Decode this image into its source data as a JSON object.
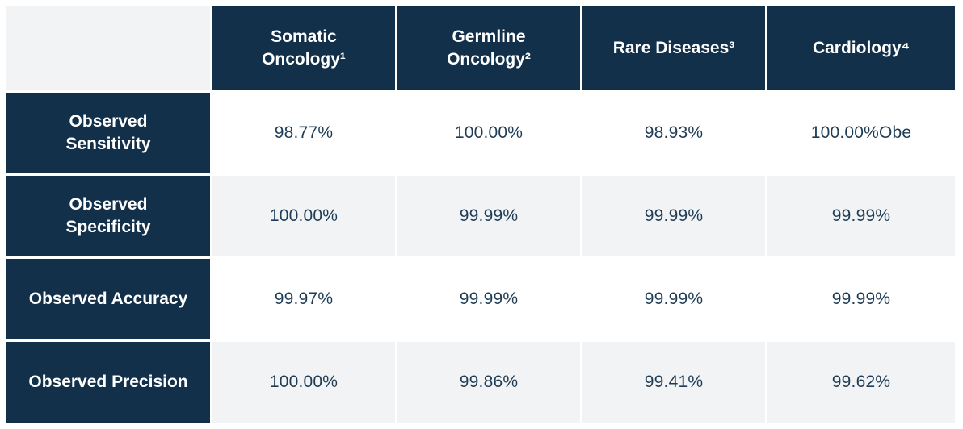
{
  "colors": {
    "navy": "#12304a",
    "row_alt": "#f1f3f4",
    "value_text": "#1e3c55",
    "page_bg": "#ffffff"
  },
  "table": {
    "corner_label": "",
    "columns": [
      "Somatic\nOncology¹",
      "Germline\nOncology²",
      "Rare Diseases³",
      "Cardiology⁴"
    ],
    "rows": [
      {
        "label": "Observed\nSensitivity",
        "values": [
          "98.77%",
          "100.00%",
          "98.93%",
          "100.00%Obe"
        ]
      },
      {
        "label": "Observed\nSpecificity",
        "values": [
          "100.00%",
          "99.99%",
          "99.99%",
          "99.99%"
        ]
      },
      {
        "label": "Observed Accuracy",
        "values": [
          "99.97%",
          "99.99%",
          "99.99%",
          "99.99%"
        ]
      },
      {
        "label": "Observed Precision",
        "values": [
          "100.00%",
          "99.86%",
          "99.41%",
          "99.62%"
        ]
      }
    ]
  },
  "chart_data": {
    "type": "table",
    "title": "",
    "categories": [
      "Somatic Oncology¹",
      "Germline Oncology²",
      "Rare Diseases³",
      "Cardiology⁴"
    ],
    "series": [
      {
        "name": "Observed Sensitivity",
        "values": [
          98.77,
          100.0,
          98.93,
          100.0
        ]
      },
      {
        "name": "Observed Specificity",
        "values": [
          100.0,
          99.99,
          99.99,
          99.99
        ]
      },
      {
        "name": "Observed Accuracy",
        "values": [
          99.97,
          99.99,
          99.99,
          99.99
        ]
      },
      {
        "name": "Observed Precision",
        "values": [
          100.0,
          99.86,
          99.41,
          99.62
        ]
      }
    ],
    "units": "percent",
    "display_artifact": "Cardiology sensitivity cell renders as 100.00%Obe"
  }
}
